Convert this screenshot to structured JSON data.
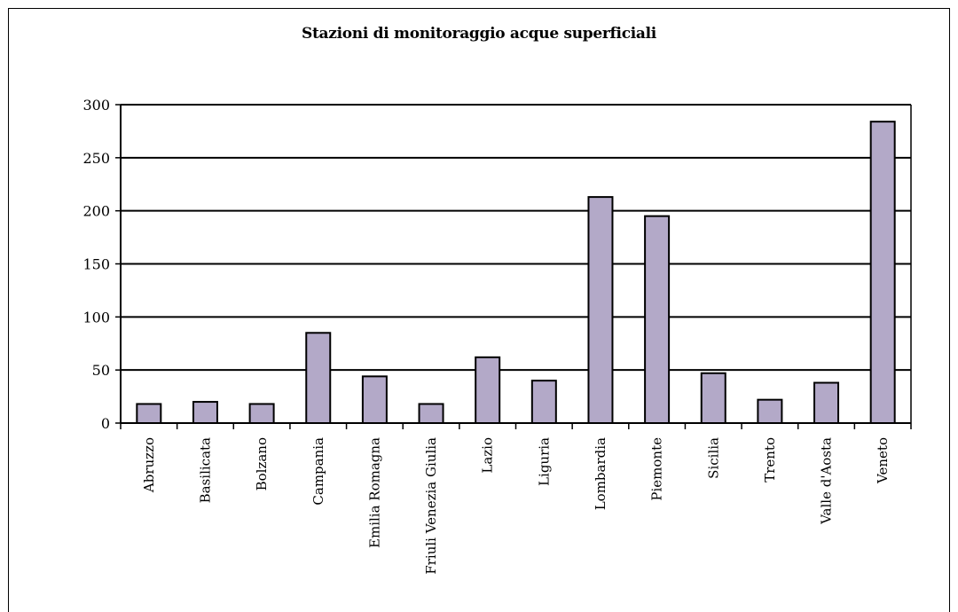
{
  "chart_data": {
    "type": "bar",
    "title": "Stazioni di monitoraggio acque superficiali",
    "xlabel": "",
    "ylabel": "",
    "ylim": [
      0,
      300
    ],
    "yticks": [
      "0",
      "50",
      "100",
      "150",
      "200",
      "250",
      "300"
    ],
    "categories": [
      "Abruzzo",
      "Basilicata",
      "Bolzano",
      "Campania",
      "Emilia Romagna",
      "Friuli Venezia Giulia",
      "Lazio",
      "Liguria",
      "Lombardia",
      "Piemonte",
      "Sicilia",
      "Trento",
      "Valle d'Aosta",
      "Veneto"
    ],
    "values": [
      18,
      20,
      18,
      85,
      44,
      18,
      62,
      40,
      213,
      195,
      47,
      22,
      38,
      284
    ],
    "grid": "horizontal",
    "legend": "none",
    "colors": {
      "bar_fill": "#b3a9c8",
      "bar_stroke": "#000000",
      "grid": "#000000"
    }
  }
}
